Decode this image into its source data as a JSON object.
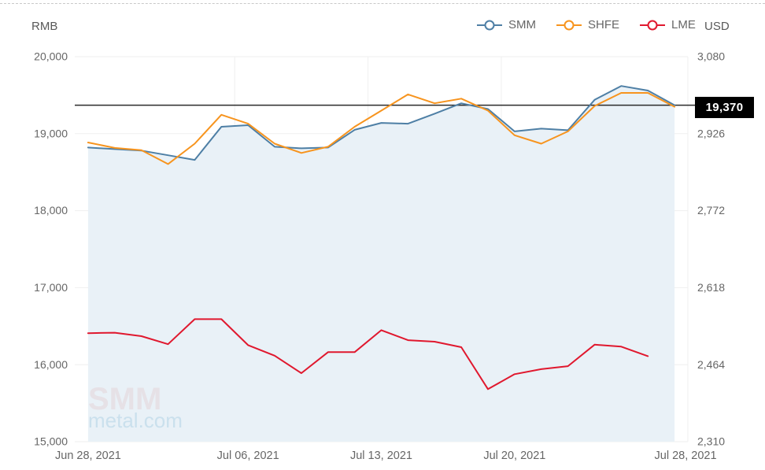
{
  "header": {
    "left_axis_unit": "RMB",
    "right_axis_unit": "USD"
  },
  "legend": [
    {
      "label": "SMM",
      "color": "#4e7fa5"
    },
    {
      "label": "SHFE",
      "color": "#f7941e"
    },
    {
      "label": "LME",
      "color": "#e0182e"
    }
  ],
  "marker": {
    "label": "19,370",
    "value": 19370
  },
  "watermark": {
    "line1": "SMM",
    "line2": "metal.com"
  },
  "chart_data": {
    "type": "line",
    "x": [
      "Jun 28",
      "Jun 29",
      "Jun 30",
      "Jul 01",
      "Jul 02",
      "Jul 05",
      "Jul 06",
      "Jul 07",
      "Jul 08",
      "Jul 09",
      "Jul 12",
      "Jul 13",
      "Jul 14",
      "Jul 15",
      "Jul 16",
      "Jul 19",
      "Jul 20",
      "Jul 21",
      "Jul 22",
      "Jul 23",
      "Jul 26",
      "Jul 27",
      "Jul 28"
    ],
    "x_tick_labels": [
      {
        "index": 0,
        "label": "Jun 28, 2021"
      },
      {
        "index": 6,
        "label": "Jul 06, 2021"
      },
      {
        "index": 11,
        "label": "Jul 13, 2021"
      },
      {
        "index": 16,
        "label": "Jul 20, 2021"
      },
      {
        "index": 22,
        "label": "Jul 28, 2021"
      }
    ],
    "series": [
      {
        "name": "SMM",
        "axis": "left",
        "color": "#4e7fa5",
        "area": true,
        "area_color": "#e9f1f7",
        "values": [
          18820,
          18800,
          18780,
          18720,
          18660,
          19090,
          19110,
          18830,
          18810,
          18820,
          19050,
          19140,
          19130,
          19260,
          19395,
          19320,
          19030,
          19065,
          19045,
          19440,
          19620,
          19560,
          19370
        ]
      },
      {
        "name": "SHFE",
        "axis": "left",
        "color": "#f7941e",
        "area": false,
        "values": [
          18885,
          18815,
          18785,
          18605,
          18870,
          19245,
          19130,
          18870,
          18750,
          18830,
          19090,
          19300,
          19510,
          19395,
          19455,
          19300,
          18980,
          18870,
          19030,
          19360,
          19530,
          19530,
          19350
        ]
      },
      {
        "name": "LME",
        "axis": "right",
        "color": "#e0182e",
        "area": false,
        "values": [
          2527,
          2528,
          2521,
          2505,
          2555,
          2555,
          2503,
          2482,
          2447,
          2489,
          2489,
          2533,
          2513,
          2510,
          2499,
          2415,
          2445,
          2455,
          2461,
          2504,
          2500,
          2481,
          null
        ]
      }
    ],
    "left_axis": {
      "unit": "RMB",
      "min": 15000,
      "max": 20000,
      "ticks": [
        {
          "value": 20000,
          "label": "20,000"
        },
        {
          "value": 19000,
          "label": "19,000"
        },
        {
          "value": 18000,
          "label": "18,000"
        },
        {
          "value": 17000,
          "label": "17,000"
        },
        {
          "value": 16000,
          "label": "16,000"
        },
        {
          "value": 15000,
          "label": "15,000"
        }
      ]
    },
    "right_axis": {
      "unit": "USD",
      "min": 2310,
      "max": 3080,
      "ticks": [
        {
          "value": 3080,
          "label": "3,080"
        },
        {
          "value": 2926,
          "label": "2,926"
        },
        {
          "value": 2772,
          "label": "2,772"
        },
        {
          "value": 2618,
          "label": "2,618"
        },
        {
          "value": 2464,
          "label": "2,464"
        },
        {
          "value": 2310,
          "label": "2,310"
        }
      ]
    },
    "reference_line": {
      "value": 19370,
      "label": "19,370",
      "color": "#2a2a2a",
      "axis": "left"
    },
    "grid": true,
    "legend_position": "top-right",
    "title": ""
  }
}
